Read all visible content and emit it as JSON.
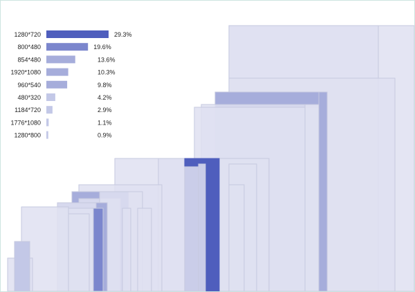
{
  "chart_data": {
    "type": "bar",
    "title": "",
    "xlabel": "",
    "ylabel": "",
    "categories": [
      "1280*720",
      "800*480",
      "854*480",
      "1920*1080",
      "960*540",
      "480*320",
      "1184*720",
      "1776*1080",
      "1280*800"
    ],
    "values": [
      29.3,
      19.6,
      13.6,
      10.3,
      9.8,
      4.2,
      2.9,
      1.1,
      0.9
    ],
    "value_labels": [
      "29.3%",
      "19.6%",
      "13.6%",
      "10.3%",
      "9.8%",
      "4.2%",
      "2.9%",
      "1.1%",
      "0.9%"
    ],
    "xlim": [
      0,
      29.3
    ],
    "legend": "top-left",
    "grid": false,
    "colors": {
      "dark": "#4f5ebd",
      "medium": "#7b86cd",
      "mid": "#a6addb",
      "light": "#c3c8e7",
      "pale": "#dfe1f1",
      "stroke": "#c6c9df"
    }
  },
  "resolution_rects": [
    {
      "label": "1280*720",
      "w": 1280,
      "h": 720,
      "tone": "pale"
    },
    {
      "label": "1280*720",
      "w": 1280,
      "h": 720,
      "tone": "pale"
    },
    {
      "label": "1280*720",
      "w": 1280,
      "h": 720,
      "tone": "pale"
    },
    {
      "label": "1280*720",
      "w": 1280,
      "h": 720,
      "tone": "pale"
    },
    {
      "label": "1920*1080",
      "w": 1920,
      "h": 1080,
      "tone": "pale"
    },
    {
      "label": "1776*1080",
      "w": 1776,
      "h": 1080,
      "tone": "pale"
    },
    {
      "label": "1280*800",
      "w": 1280,
      "h": 800,
      "tone": "pale"
    },
    {
      "label": "1184*720",
      "w": 1184,
      "h": 720,
      "tone": "pale"
    },
    {
      "label": "960*540",
      "w": 960,
      "h": 540,
      "tone": "pale"
    },
    {
      "label": "854*480",
      "w": 854,
      "h": 480,
      "tone": "pale"
    },
    {
      "label": "800*480",
      "w": 800,
      "h": 480,
      "tone": "pale"
    },
    {
      "label": "480*320",
      "w": 480,
      "h": 320,
      "tone": "pale"
    }
  ]
}
